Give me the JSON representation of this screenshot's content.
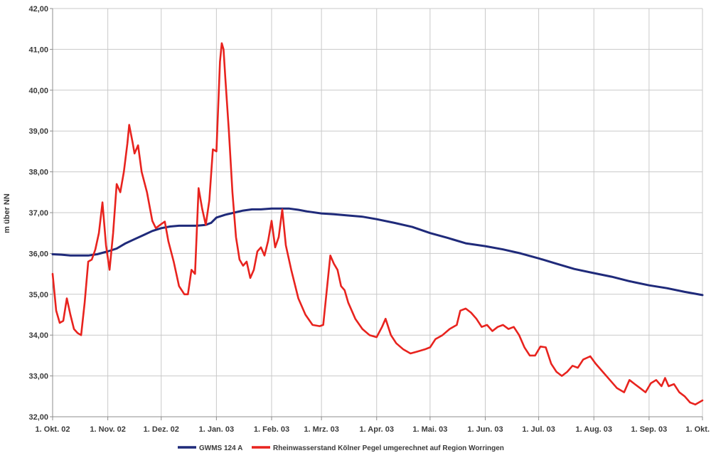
{
  "chart_data": {
    "type": "line",
    "ylabel": "m über NN",
    "xlabel": "",
    "ylim": [
      32,
      42
    ],
    "y_ticks": [
      "32,00",
      "33,00",
      "34,00",
      "35,00",
      "36,00",
      "37,00",
      "38,00",
      "39,00",
      "40,00",
      "41,00",
      "42,00"
    ],
    "x_range": [
      "2002-10-01",
      "2003-10-01"
    ],
    "x_ticks": [
      {
        "date": "2002-10-01",
        "label": "1. Okt. 02"
      },
      {
        "date": "2002-11-01",
        "label": "1. Nov. 02"
      },
      {
        "date": "2002-12-01",
        "label": "1. Dez. 02"
      },
      {
        "date": "2003-01-01",
        "label": "1. Jan. 03"
      },
      {
        "date": "2003-02-01",
        "label": "1. Feb. 03"
      },
      {
        "date": "2003-03-01",
        "label": "1. Mrz. 03"
      },
      {
        "date": "2003-04-01",
        "label": "1. Apr. 03"
      },
      {
        "date": "2003-05-01",
        "label": "1. Mai. 03"
      },
      {
        "date": "2003-06-01",
        "label": "1. Jun. 03"
      },
      {
        "date": "2003-07-01",
        "label": "1. Jul. 03"
      },
      {
        "date": "2003-08-01",
        "label": "1. Aug. 03"
      },
      {
        "date": "2003-09-01",
        "label": "1. Sep. 03"
      },
      {
        "date": "2003-10-01",
        "label": "1. Okt."
      }
    ],
    "grid": true,
    "legend_position": "bottom",
    "series": [
      {
        "name": "GWMS 124 A",
        "color": "#1f2a7a",
        "points": [
          [
            "2002-10-01",
            35.98
          ],
          [
            "2002-10-06",
            35.97
          ],
          [
            "2002-10-11",
            35.95
          ],
          [
            "2002-10-16",
            35.95
          ],
          [
            "2002-10-21",
            35.95
          ],
          [
            "2002-10-26",
            35.98
          ],
          [
            "2002-11-01",
            36.05
          ],
          [
            "2002-11-06",
            36.12
          ],
          [
            "2002-11-11",
            36.25
          ],
          [
            "2002-11-16",
            36.35
          ],
          [
            "2002-11-21",
            36.45
          ],
          [
            "2002-11-26",
            36.55
          ],
          [
            "2002-12-01",
            36.62
          ],
          [
            "2002-12-06",
            36.66
          ],
          [
            "2002-12-11",
            36.68
          ],
          [
            "2002-12-16",
            36.68
          ],
          [
            "2002-12-21",
            36.68
          ],
          [
            "2002-12-26",
            36.7
          ],
          [
            "2002-12-29",
            36.75
          ],
          [
            "2003-01-01",
            36.88
          ],
          [
            "2003-01-06",
            36.95
          ],
          [
            "2003-01-11",
            37.0
          ],
          [
            "2003-01-16",
            37.05
          ],
          [
            "2003-01-21",
            37.08
          ],
          [
            "2003-01-26",
            37.08
          ],
          [
            "2003-02-01",
            37.1
          ],
          [
            "2003-02-06",
            37.1
          ],
          [
            "2003-02-11",
            37.1
          ],
          [
            "2003-02-16",
            37.07
          ],
          [
            "2003-02-21",
            37.03
          ],
          [
            "2003-03-01",
            36.98
          ],
          [
            "2003-03-08",
            36.96
          ],
          [
            "2003-03-16",
            36.93
          ],
          [
            "2003-03-24",
            36.9
          ],
          [
            "2003-04-01",
            36.84
          ],
          [
            "2003-04-11",
            36.75
          ],
          [
            "2003-04-21",
            36.65
          ],
          [
            "2003-05-01",
            36.5
          ],
          [
            "2003-05-11",
            36.38
          ],
          [
            "2003-05-21",
            36.25
          ],
          [
            "2003-06-01",
            36.18
          ],
          [
            "2003-06-11",
            36.1
          ],
          [
            "2003-06-21",
            36.0
          ],
          [
            "2003-07-01",
            35.88
          ],
          [
            "2003-07-11",
            35.75
          ],
          [
            "2003-07-21",
            35.62
          ],
          [
            "2003-08-01",
            35.52
          ],
          [
            "2003-08-11",
            35.43
          ],
          [
            "2003-08-21",
            35.32
          ],
          [
            "2003-09-01",
            35.22
          ],
          [
            "2003-09-11",
            35.15
          ],
          [
            "2003-09-21",
            35.06
          ],
          [
            "2003-10-01",
            34.98
          ]
        ]
      },
      {
        "name": "Rheinwasserstand Kölner Pegel umgerechnet auf Region Worringen",
        "color": "#e8231e",
        "points": [
          [
            "2002-10-01",
            35.5
          ],
          [
            "2002-10-03",
            34.6
          ],
          [
            "2002-10-05",
            34.3
          ],
          [
            "2002-10-07",
            34.35
          ],
          [
            "2002-10-09",
            34.9
          ],
          [
            "2002-10-11",
            34.5
          ],
          [
            "2002-10-13",
            34.15
          ],
          [
            "2002-10-15",
            34.05
          ],
          [
            "2002-10-17",
            34.0
          ],
          [
            "2002-10-19",
            34.8
          ],
          [
            "2002-10-21",
            35.8
          ],
          [
            "2002-10-23",
            35.85
          ],
          [
            "2002-10-25",
            36.1
          ],
          [
            "2002-10-27",
            36.5
          ],
          [
            "2002-10-29",
            37.25
          ],
          [
            "2002-10-31",
            36.2
          ],
          [
            "2002-11-02",
            35.6
          ],
          [
            "2002-11-04",
            36.5
          ],
          [
            "2002-11-06",
            37.7
          ],
          [
            "2002-11-08",
            37.5
          ],
          [
            "2002-11-10",
            38.0
          ],
          [
            "2002-11-12",
            38.7
          ],
          [
            "2002-11-13",
            39.15
          ],
          [
            "2002-11-15",
            38.7
          ],
          [
            "2002-11-16",
            38.45
          ],
          [
            "2002-11-18",
            38.65
          ],
          [
            "2002-11-20",
            38.0
          ],
          [
            "2002-11-23",
            37.5
          ],
          [
            "2002-11-26",
            36.8
          ],
          [
            "2002-11-28",
            36.62
          ],
          [
            "2002-12-01",
            36.72
          ],
          [
            "2002-12-03",
            36.78
          ],
          [
            "2002-12-05",
            36.3
          ],
          [
            "2002-12-08",
            35.8
          ],
          [
            "2002-12-11",
            35.2
          ],
          [
            "2002-12-14",
            35.0
          ],
          [
            "2002-12-16",
            35.0
          ],
          [
            "2002-12-18",
            35.6
          ],
          [
            "2002-12-20",
            35.5
          ],
          [
            "2002-12-22",
            37.6
          ],
          [
            "2002-12-24",
            37.1
          ],
          [
            "2002-12-26",
            36.7
          ],
          [
            "2002-12-28",
            37.3
          ],
          [
            "2002-12-30",
            38.55
          ],
          [
            "2003-01-01",
            38.5
          ],
          [
            "2003-01-03",
            40.7
          ],
          [
            "2003-01-04",
            41.15
          ],
          [
            "2003-01-05",
            41.0
          ],
          [
            "2003-01-06",
            40.3
          ],
          [
            "2003-01-08",
            39.0
          ],
          [
            "2003-01-10",
            37.5
          ],
          [
            "2003-01-12",
            36.4
          ],
          [
            "2003-01-14",
            35.85
          ],
          [
            "2003-01-16",
            35.7
          ],
          [
            "2003-01-18",
            35.8
          ],
          [
            "2003-01-20",
            35.4
          ],
          [
            "2003-01-22",
            35.6
          ],
          [
            "2003-01-24",
            36.05
          ],
          [
            "2003-01-26",
            36.15
          ],
          [
            "2003-01-28",
            35.95
          ],
          [
            "2003-01-30",
            36.3
          ],
          [
            "2003-02-01",
            36.8
          ],
          [
            "2003-02-03",
            36.15
          ],
          [
            "2003-02-05",
            36.4
          ],
          [
            "2003-02-07",
            37.08
          ],
          [
            "2003-02-09",
            36.2
          ],
          [
            "2003-02-12",
            35.6
          ],
          [
            "2003-02-16",
            34.9
          ],
          [
            "2003-02-20",
            34.5
          ],
          [
            "2003-02-24",
            34.25
          ],
          [
            "2003-02-28",
            34.22
          ],
          [
            "2003-03-02",
            34.25
          ],
          [
            "2003-03-04",
            35.1
          ],
          [
            "2003-03-06",
            35.95
          ],
          [
            "2003-03-08",
            35.75
          ],
          [
            "2003-03-10",
            35.6
          ],
          [
            "2003-03-12",
            35.2
          ],
          [
            "2003-03-14",
            35.1
          ],
          [
            "2003-03-16",
            34.8
          ],
          [
            "2003-03-20",
            34.4
          ],
          [
            "2003-03-24",
            34.15
          ],
          [
            "2003-03-28",
            34.0
          ],
          [
            "2003-04-01",
            33.95
          ],
          [
            "2003-04-04",
            34.2
          ],
          [
            "2003-04-06",
            34.4
          ],
          [
            "2003-04-09",
            34.0
          ],
          [
            "2003-04-12",
            33.8
          ],
          [
            "2003-04-16",
            33.65
          ],
          [
            "2003-04-20",
            33.55
          ],
          [
            "2003-04-24",
            33.6
          ],
          [
            "2003-04-28",
            33.65
          ],
          [
            "2003-05-01",
            33.7
          ],
          [
            "2003-05-04",
            33.9
          ],
          [
            "2003-05-08",
            34.0
          ],
          [
            "2003-05-12",
            34.15
          ],
          [
            "2003-05-16",
            34.25
          ],
          [
            "2003-05-18",
            34.6
          ],
          [
            "2003-05-21",
            34.65
          ],
          [
            "2003-05-24",
            34.55
          ],
          [
            "2003-05-27",
            34.4
          ],
          [
            "2003-05-30",
            34.2
          ],
          [
            "2003-06-02",
            34.25
          ],
          [
            "2003-06-05",
            34.1
          ],
          [
            "2003-06-08",
            34.2
          ],
          [
            "2003-06-11",
            34.25
          ],
          [
            "2003-06-14",
            34.15
          ],
          [
            "2003-06-17",
            34.2
          ],
          [
            "2003-06-20",
            34.0
          ],
          [
            "2003-06-23",
            33.7
          ],
          [
            "2003-06-26",
            33.5
          ],
          [
            "2003-06-29",
            33.5
          ],
          [
            "2003-07-02",
            33.72
          ],
          [
            "2003-07-05",
            33.7
          ],
          [
            "2003-07-08",
            33.3
          ],
          [
            "2003-07-11",
            33.1
          ],
          [
            "2003-07-14",
            33.0
          ],
          [
            "2003-07-17",
            33.1
          ],
          [
            "2003-07-20",
            33.25
          ],
          [
            "2003-07-23",
            33.2
          ],
          [
            "2003-07-26",
            33.4
          ],
          [
            "2003-07-30",
            33.48
          ],
          [
            "2003-08-02",
            33.3
          ],
          [
            "2003-08-06",
            33.1
          ],
          [
            "2003-08-10",
            32.9
          ],
          [
            "2003-08-14",
            32.7
          ],
          [
            "2003-08-18",
            32.6
          ],
          [
            "2003-08-21",
            32.9
          ],
          [
            "2003-08-24",
            32.8
          ],
          [
            "2003-08-27",
            32.7
          ],
          [
            "2003-08-30",
            32.6
          ],
          [
            "2003-09-02",
            32.82
          ],
          [
            "2003-09-05",
            32.9
          ],
          [
            "2003-09-08",
            32.75
          ],
          [
            "2003-09-10",
            32.95
          ],
          [
            "2003-09-12",
            32.75
          ],
          [
            "2003-09-15",
            32.8
          ],
          [
            "2003-09-18",
            32.6
          ],
          [
            "2003-09-21",
            32.5
          ],
          [
            "2003-09-24",
            32.35
          ],
          [
            "2003-09-27",
            32.3
          ],
          [
            "2003-09-29",
            32.35
          ],
          [
            "2003-10-01",
            32.4
          ]
        ]
      }
    ]
  }
}
